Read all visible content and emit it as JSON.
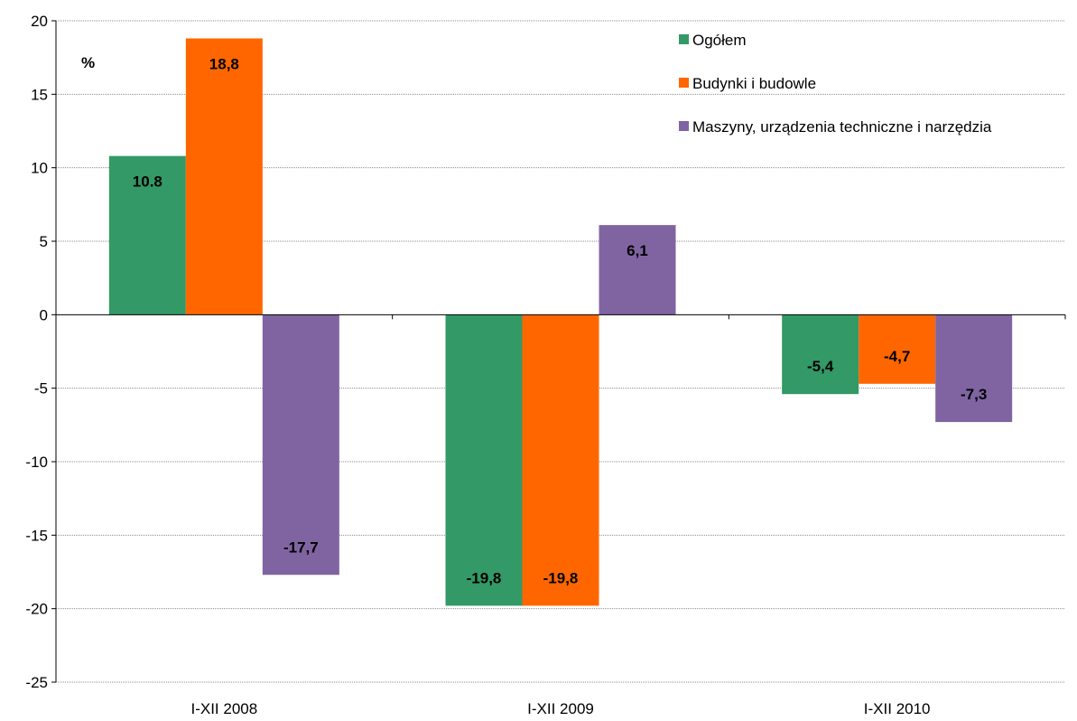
{
  "chart_data": {
    "type": "bar",
    "unit_label": "%",
    "categories": [
      "I-XII 2008",
      "I-XII 2009",
      "I-XII 2010"
    ],
    "ylim": [
      -25,
      20
    ],
    "yticks": [
      20,
      15,
      10,
      5,
      0,
      -5,
      -10,
      -15,
      -20,
      -25
    ],
    "grid": true,
    "legend_position": "top-right",
    "series": [
      {
        "name": "Ogółem",
        "color": "#339966",
        "values": [
          10.8,
          -19.8,
          -5.4
        ],
        "labels": [
          "10.8",
          "-19,8",
          "-5,4"
        ]
      },
      {
        "name": "Budynki i budowle",
        "color": "#FF6600",
        "values": [
          18.8,
          -19.8,
          -4.7
        ],
        "labels": [
          "18,8",
          "-19,8",
          "-4,7"
        ]
      },
      {
        "name": "Maszyny, urządzenia  techniczne i narzędzia",
        "color": "#8064A2",
        "values": [
          -17.7,
          6.1,
          -7.3
        ],
        "labels": [
          "-17,7",
          "6,1",
          "-7,3"
        ]
      }
    ]
  }
}
